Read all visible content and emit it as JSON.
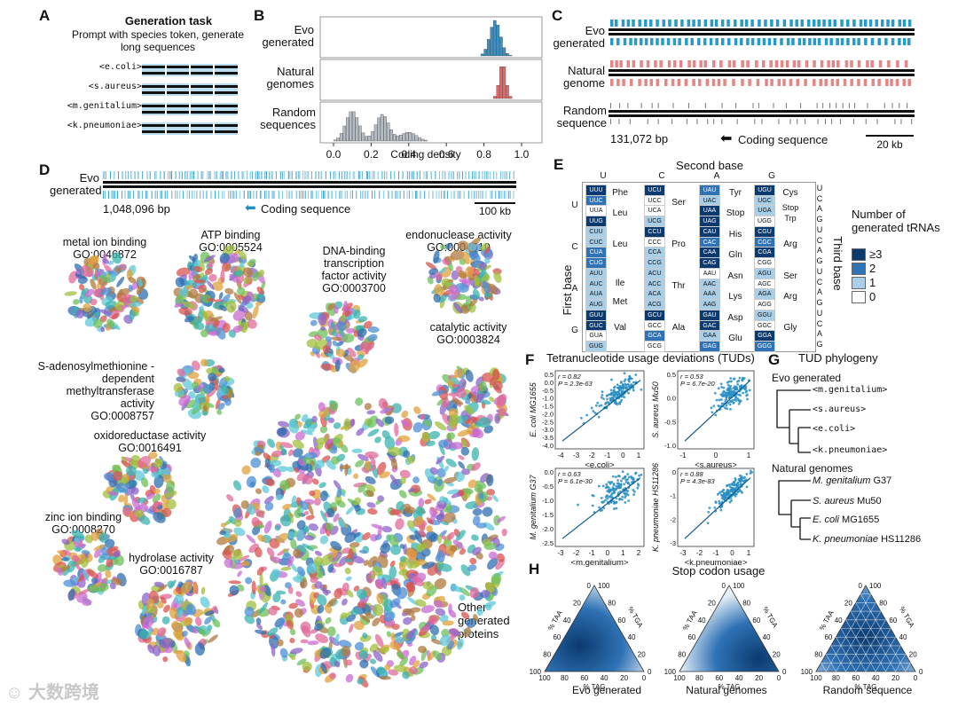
{
  "panels": {
    "A": "A",
    "B": "B",
    "C": "C",
    "D": "D",
    "E": "E",
    "F": "F",
    "G": "G",
    "H": "H"
  },
  "panel_a": {
    "title": "Generation task",
    "subtitle": "Prompt with species token, generate long sequences",
    "tokens": [
      "<e.coli>",
      "<s.aureus>",
      "<m.genitalium>",
      "<k.pneumoniae>"
    ]
  },
  "panel_b": {
    "row_labels": [
      "Evo generated",
      "Natural genomes",
      "Random sequences"
    ],
    "xlabel": "Coding density",
    "xticks": [
      "0.0",
      "0.2",
      "0.4",
      "0.6",
      "0.8",
      "1.0"
    ],
    "colors": {
      "evo": "#3b8fc2",
      "natural": "#e06a6a",
      "random": "#b5bcc4"
    }
  },
  "panel_c": {
    "row_labels": [
      "Evo generated",
      "Natural genome",
      "Random sequence"
    ],
    "bp_label": "131,072 bp",
    "legend": "Coding sequence",
    "scale": "20 kb"
  },
  "panel_d": {
    "row_label": "Evo generated",
    "bp_label": "1,048,096 bp",
    "legend": "Coding sequence",
    "scale": "100 kb",
    "clusters": [
      {
        "name": "metal ion binding",
        "go": "GO:0046872"
      },
      {
        "name": "ATP binding",
        "go": "GO:0005524"
      },
      {
        "name": "DNA-binding transcription factor activity",
        "go": "GO:0003700"
      },
      {
        "name": "endonuclease activity",
        "go": "GO:0004519"
      },
      {
        "name": "catalytic activity",
        "go": "GO:0003824"
      },
      {
        "name": "S-adenosylmethionine -dependent methyltransferase activity",
        "go": "GO:0008757"
      },
      {
        "name": "oxidoreductase activity",
        "go": "GO:0016491"
      },
      {
        "name": "zinc ion binding",
        "go": "GO:0008270"
      },
      {
        "name": "hydrolase activity",
        "go": "GO:0016787"
      },
      {
        "name": "Other generated proteins",
        "go": ""
      }
    ]
  },
  "panel_e": {
    "title": "Second base",
    "first_base": "First base",
    "third_base": "Third base",
    "bases": [
      "U",
      "C",
      "A",
      "G"
    ],
    "legend_title": "Number of generated tRNAs",
    "legend_items": [
      "≥3",
      "2",
      "1",
      "0"
    ],
    "legend_colors": [
      "#0b3a6e",
      "#2f72b5",
      "#a9cfe8",
      "#ffffff"
    ],
    "codons": [
      [
        "UUU",
        "UUC",
        "UUA",
        "UUG",
        "CUU",
        "CUC",
        "CUA",
        "CUG",
        "AUU",
        "AUC",
        "AUA",
        "AUG",
        "GUU",
        "GUC",
        "GUA",
        "GUG"
      ],
      [
        "UCU",
        "UCC",
        "UCA",
        "UCG",
        "CCU",
        "CCC",
        "CCA",
        "CCG",
        "ACU",
        "ACC",
        "ACA",
        "ACG",
        "GCU",
        "GCC",
        "GCA",
        "GCG"
      ],
      [
        "UAU",
        "UAC",
        "UAA",
        "UAG",
        "CAU",
        "CAC",
        "CAA",
        "CAG",
        "AAU",
        "AAC",
        "AAA",
        "AAG",
        "GAU",
        "GAC",
        "GAA",
        "GAG"
      ],
      [
        "UGU",
        "UGC",
        "UGA",
        "UGG",
        "CGU",
        "CGC",
        "CGA",
        "CGG",
        "AGU",
        "AGC",
        "AGA",
        "AGG",
        "GGU",
        "GGC",
        "GGA",
        "GGG"
      ]
    ],
    "levels": [
      [
        3,
        2,
        0,
        3,
        1,
        1,
        2,
        2,
        1,
        1,
        1,
        1,
        3,
        3,
        0,
        1
      ],
      [
        3,
        0,
        0,
        1,
        3,
        0,
        1,
        1,
        1,
        1,
        1,
        1,
        3,
        0,
        2,
        0
      ],
      [
        2,
        1,
        3,
        3,
        3,
        2,
        3,
        3,
        0,
        1,
        1,
        1,
        3,
        3,
        1,
        2
      ],
      [
        3,
        1,
        1,
        0,
        3,
        2,
        3,
        0,
        1,
        0,
        1,
        0,
        1,
        0,
        3,
        2
      ]
    ],
    "amino_acids": [
      [
        "Phe",
        "Leu",
        "Leu",
        "Ile",
        "Met",
        "Val"
      ],
      [
        "Ser",
        "Pro",
        "Thr",
        "Ala"
      ],
      [
        "Tyr",
        "Stop",
        "His",
        "Gln",
        "Asn",
        "Lys",
        "Asp",
        "Glu"
      ],
      [
        "Cys",
        "Stop",
        "Trp",
        "Arg",
        "Ser",
        "Arg",
        "Gly"
      ]
    ]
  },
  "panel_f": {
    "title": "Tetranucleotide usage deviations (TUDs)",
    "plots": [
      {
        "ylabel": "E. coli MG1655",
        "xlabel": "<e.coli>",
        "r": "r = 0.82",
        "p": "P = 2.3e-63",
        "xticks": [
          "-4",
          "-3",
          "-2",
          "-1",
          "0",
          "1"
        ],
        "yticks": [
          "0.5",
          "0.0",
          "-0.5",
          "-1.0",
          "-1.5",
          "-2.0",
          "-2.5",
          "-3.0",
          "-3.5",
          "-4.0"
        ]
      },
      {
        "ylabel": "S. aureus Mu50",
        "xlabel": "<s.aureus>",
        "r": "r = 0.53",
        "p": "P = 6.7e-20",
        "xticks": [
          "-1",
          "0",
          "1"
        ],
        "yticks": [
          "0.5",
          "0.0",
          "-0.5",
          "-1.0"
        ]
      },
      {
        "ylabel": "M. genitalium G37",
        "xlabel": "<m.genitalium>",
        "r": "r = 0.63",
        "p": "P = 6.1e-30",
        "xticks": [
          "-3",
          "-2",
          "-1",
          "0",
          "1",
          "2"
        ],
        "yticks": [
          "0.0",
          "-0.5",
          "-1.0",
          "-1.5",
          "-2.0",
          "-2.5"
        ]
      },
      {
        "ylabel": "K. pneumoniae HS11286",
        "xlabel": "<k.pneumoniae>",
        "r": "r = 0.88",
        "p": "P = 4.3e-83",
        "xticks": [
          "-3",
          "-2",
          "-1",
          "0",
          "1"
        ],
        "yticks": [
          "0",
          "-1",
          "-2",
          "-3"
        ]
      }
    ]
  },
  "panel_g": {
    "title": "TUD phylogeny",
    "evo_title": "Evo generated",
    "evo_leaves": [
      "<m.genitalium>",
      "<s.aureus>",
      "<e.coli>",
      "<k.pneumoniae>"
    ],
    "nat_title": "Natural genomes",
    "nat_leaves": [
      {
        "sp": "M. genitalium",
        "strain": "G37"
      },
      {
        "sp": "S. aureus",
        "strain": "Mu50"
      },
      {
        "sp": "E. coli",
        "strain": "MG1655"
      },
      {
        "sp": "K. pneumoniae",
        "strain": "HS11286"
      }
    ]
  },
  "panel_h": {
    "title": "Stop codon usage",
    "plots": [
      "Evo generated",
      "Natural genomes",
      "Random sequence"
    ],
    "axis_taa": "% TAA",
    "axis_tga": "% TGA",
    "axis_tag": "% TAG",
    "ticks": [
      "0",
      "20",
      "40",
      "60",
      "80",
      "100"
    ]
  },
  "watermark": "大数跨境"
}
